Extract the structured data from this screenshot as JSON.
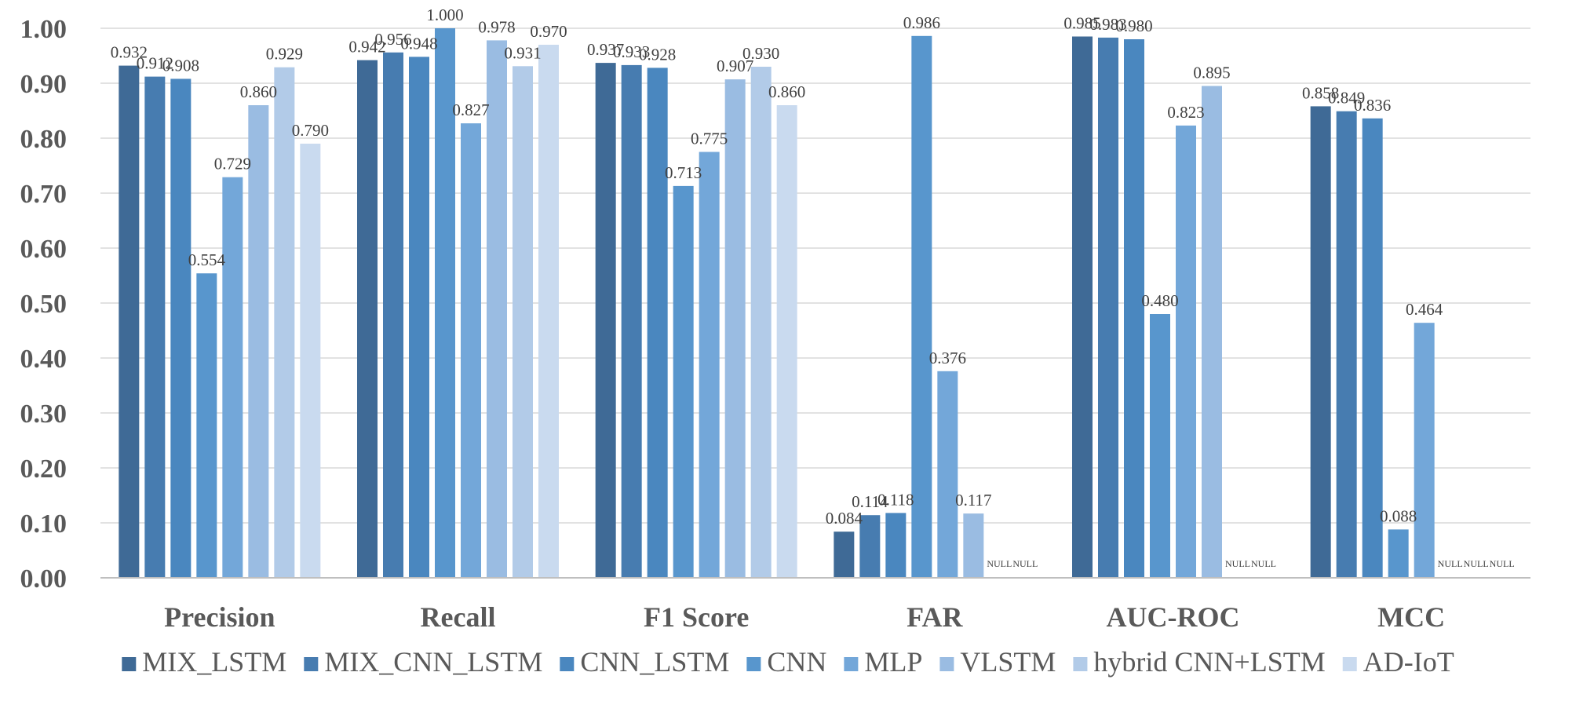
{
  "chart_data": {
    "type": "bar",
    "title": "",
    "xlabel": "",
    "ylabel": "",
    "ylim": [
      0,
      1.0
    ],
    "yticks": [
      "0.00",
      "0.10",
      "0.20",
      "0.30",
      "0.40",
      "0.50",
      "0.60",
      "0.70",
      "0.80",
      "0.90",
      "1.00"
    ],
    "grid": true,
    "legend_position": "bottom",
    "null_label": "NULL",
    "categories": [
      "Precision",
      "Recall",
      "F1 Score",
      "FAR",
      "AUC-ROC",
      "MCC"
    ],
    "series": [
      {
        "name": "MIX_LSTM",
        "color": "#3f6a96",
        "values": [
          0.932,
          0.942,
          0.937,
          0.084,
          0.985,
          0.858
        ],
        "labels": [
          "0.932",
          "0.942",
          "0.937",
          "0.084",
          "0.985",
          "0.858"
        ]
      },
      {
        "name": "MIX_CNN_LSTM",
        "color": "#477cb0",
        "values": [
          0.912,
          0.956,
          0.933,
          0.114,
          0.983,
          0.849
        ],
        "labels": [
          "0.912",
          "0.956",
          "0.933",
          "0.114",
          "0.983",
          "0.849"
        ]
      },
      {
        "name": "CNN_LSTM",
        "color": "#4a87bf",
        "values": [
          0.908,
          0.948,
          0.928,
          0.118,
          0.98,
          0.836
        ],
        "labels": [
          "0.908",
          "0.948",
          "0.928",
          "0.118",
          "0.980",
          "0.836"
        ]
      },
      {
        "name": "CNN",
        "color": "#5896cd",
        "values": [
          0.554,
          1.0,
          0.713,
          0.986,
          0.48,
          0.088
        ],
        "labels": [
          "0.554",
          "1.000",
          "0.713",
          "0.986",
          "0.480",
          "0.088"
        ]
      },
      {
        "name": "MLP",
        "color": "#73a7d9",
        "values": [
          0.729,
          0.827,
          0.775,
          0.376,
          0.823,
          0.464
        ],
        "labels": [
          "0.729",
          "0.827",
          "0.775",
          "0.376",
          "0.823",
          "0.464"
        ]
      },
      {
        "name": "VLSTM",
        "color": "#9abce2",
        "values": [
          0.86,
          0.978,
          0.907,
          0.117,
          0.895,
          null
        ],
        "labels": [
          "0.860",
          "0.978",
          "0.907",
          "0.117",
          "0.895",
          "NULL"
        ]
      },
      {
        "name": "hybrid CNN+LSTM",
        "color": "#b2cbe8",
        "values": [
          0.929,
          0.931,
          0.93,
          null,
          null,
          null
        ],
        "labels": [
          "0.929",
          "0.931",
          "0.930",
          "NULL",
          "NULL",
          "NULL"
        ]
      },
      {
        "name": "AD-IoT",
        "color": "#c9daef",
        "values": [
          0.79,
          0.97,
          0.86,
          null,
          null,
          null
        ],
        "labels": [
          "0.790",
          "0.970",
          "0.860",
          "NULL",
          "NULL",
          "NULL"
        ]
      }
    ]
  }
}
